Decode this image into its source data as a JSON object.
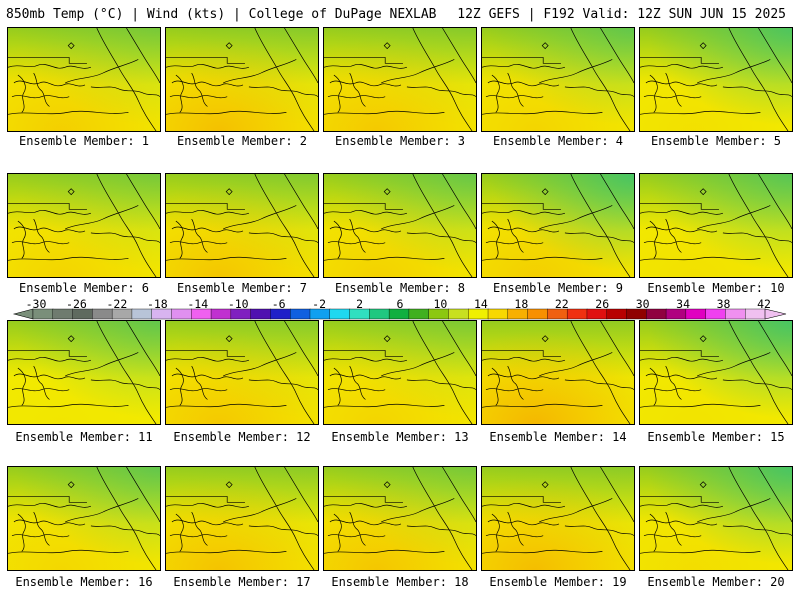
{
  "header": {
    "left": "850mb Temp (°C) | Wind (kts) | College of DuPage NEXLAB",
    "right": "12Z GEFS | F192 Valid: 12Z SUN JUN 15 2025"
  },
  "members": [
    {
      "label": "Ensemble Member: 1",
      "warm": 0.5,
      "cool": 0.3
    },
    {
      "label": "Ensemble Member: 2",
      "warm": 0.75,
      "cool": 0.15
    },
    {
      "label": "Ensemble Member: 3",
      "warm": 0.6,
      "cool": 0.15
    },
    {
      "label": "Ensemble Member: 4",
      "warm": 0.4,
      "cool": 0.5
    },
    {
      "label": "Ensemble Member: 5",
      "warm": 0.2,
      "cool": 0.7
    },
    {
      "label": "Ensemble Member: 6",
      "warm": 0.4,
      "cool": 0.3
    },
    {
      "label": "Ensemble Member: 7",
      "warm": 0.65,
      "cool": 0.2
    },
    {
      "label": "Ensemble Member: 8",
      "warm": 0.45,
      "cool": 0.45
    },
    {
      "label": "Ensemble Member: 9",
      "warm": 0.5,
      "cool": 0.75
    },
    {
      "label": "Ensemble Member: 10",
      "warm": 0.2,
      "cool": 0.6
    },
    {
      "label": "Ensemble Member: 11",
      "warm": 0.1,
      "cool": 0.5
    },
    {
      "label": "Ensemble Member: 12",
      "warm": 0.6,
      "cool": 0.15
    },
    {
      "label": "Ensemble Member: 13",
      "warm": 0.4,
      "cool": 0.25
    },
    {
      "label": "Ensemble Member: 14",
      "warm": 0.9,
      "cool": 0.05
    },
    {
      "label": "Ensemble Member: 15",
      "warm": 0.15,
      "cool": 0.75
    },
    {
      "label": "Ensemble Member: 16",
      "warm": 0.35,
      "cool": 0.5
    },
    {
      "label": "Ensemble Member: 17",
      "warm": 0.7,
      "cool": 0.1
    },
    {
      "label": "Ensemble Member: 18",
      "warm": 0.65,
      "cool": 0.3
    },
    {
      "label": "Ensemble Member: 19",
      "warm": 0.8,
      "cool": 0.1
    },
    {
      "label": "Ensemble Member: 20",
      "warm": 0.25,
      "cool": 0.75
    }
  ],
  "colorbar": {
    "labels": [
      "-30",
      "-26",
      "-22",
      "-18",
      "-14",
      "-10",
      "-6",
      "-2",
      "2",
      "6",
      "10",
      "14",
      "18",
      "22",
      "26",
      "30",
      "34",
      "38",
      "42"
    ],
    "colors": [
      "#7a8f7a",
      "#6f7b6f",
      "#5f6a5f",
      "#8a8a8a",
      "#a8a8a8",
      "#b8c4d8",
      "#d8b4f0",
      "#e090f0",
      "#f060f0",
      "#c030d0",
      "#8020c0",
      "#5010b0",
      "#2020c8",
      "#1060e0",
      "#10a0f0",
      "#20d8f0",
      "#30e0c0",
      "#20c880",
      "#10b040",
      "#40b020",
      "#8cc810",
      "#c8e020",
      "#f0f000",
      "#f8d800",
      "#f8b000",
      "#f89000",
      "#f06010",
      "#f03010",
      "#e01010",
      "#b80000",
      "#900000",
      "#900040",
      "#b00080",
      "#e000c0",
      "#f040f0",
      "#f090f0",
      "#f0c0f0"
    ]
  },
  "palette": {
    "cool": "#2ec27a",
    "mid": "#96cc1e",
    "warm": "#f2ec00",
    "hot": "#f5b200",
    "outline": "#000000"
  }
}
